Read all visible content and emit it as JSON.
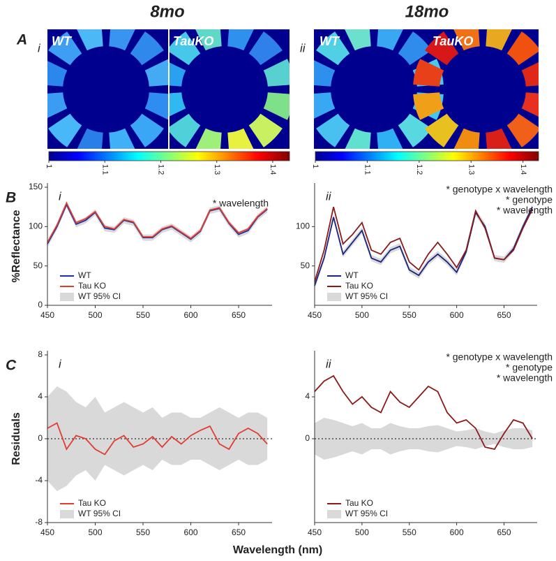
{
  "figure": {
    "columns": [
      "8mo",
      "18mo"
    ],
    "panel_A": {
      "letter": "A",
      "subpanels": [
        "i",
        "ii"
      ],
      "image_labels": [
        [
          "WT",
          "TauKO"
        ],
        [
          "WT",
          "TauKO"
        ]
      ]
    },
    "xlabel": "Wavelength (nm)",
    "colorbars": [
      {
        "clim": [
          1,
          1.43
        ],
        "ticks": [
          1,
          1.1,
          1.2,
          1.3,
          1.4
        ]
      },
      {
        "clim": [
          1,
          1.43
        ],
        "ticks": [
          1,
          1.1,
          1.2,
          1.3,
          1.4
        ]
      }
    ]
  },
  "chart_data": [
    {
      "type": "line",
      "panel": "B",
      "subpanel": "i",
      "ylabel": "%Reflectance",
      "annotations": [
        "* wavelength"
      ],
      "legend": "lower left",
      "x": [
        450,
        460,
        470,
        480,
        490,
        500,
        510,
        520,
        530,
        540,
        550,
        560,
        570,
        580,
        590,
        600,
        610,
        620,
        630,
        640,
        650,
        660,
        670,
        680
      ],
      "xlim": [
        450,
        685
      ],
      "xticks": [
        450,
        500,
        550,
        600,
        650
      ],
      "ylim": [
        0,
        150
      ],
      "yticks": [
        0,
        50,
        100,
        150
      ],
      "series": [
        {
          "name": "WT",
          "color": "#1f2f9e",
          "values": [
            78,
            100,
            128,
            103,
            108,
            118,
            98,
            96,
            108,
            105,
            86,
            86,
            96,
            100,
            92,
            84,
            94,
            120,
            123,
            104,
            90,
            95,
            112,
            122
          ]
        },
        {
          "name": "Tau KO",
          "color": "#e03c31",
          "values": [
            80,
            102,
            130,
            105,
            110,
            119,
            100,
            97,
            109,
            106,
            87,
            87,
            97,
            101,
            93,
            85,
            95,
            121,
            124,
            105,
            92,
            97,
            113,
            123
          ]
        },
        {
          "name": "WT 95% CI",
          "color": "#d9d9d9",
          "upper": [
            82,
            104,
            132,
            107,
            112,
            122,
            102,
            100,
            112,
            109,
            90,
            90,
            100,
            104,
            96,
            88,
            98,
            124,
            127,
            108,
            94,
            99,
            116,
            126
          ],
          "lower": [
            74,
            96,
            124,
            99,
            104,
            114,
            94,
            92,
            104,
            101,
            82,
            82,
            92,
            96,
            88,
            80,
            90,
            116,
            119,
            100,
            86,
            91,
            108,
            118
          ]
        }
      ]
    },
    {
      "type": "line",
      "subpanel": "ii",
      "annotations": [
        "* genotype x wavelength",
        "* genotype",
        "* wavelength"
      ],
      "legend": "lower left",
      "x": [
        450,
        460,
        470,
        480,
        490,
        500,
        510,
        520,
        530,
        540,
        550,
        560,
        570,
        580,
        590,
        600,
        610,
        620,
        630,
        640,
        650,
        660,
        670,
        680
      ],
      "xlim": [
        450,
        685
      ],
      "xticks": [
        450,
        500,
        550,
        600,
        650
      ],
      "ylim": [
        0,
        150
      ],
      "yticks": [
        50,
        100
      ],
      "series": [
        {
          "name": "WT",
          "color": "#1a237e",
          "values": [
            25,
            60,
            112,
            65,
            80,
            95,
            60,
            55,
            70,
            75,
            45,
            38,
            55,
            65,
            55,
            42,
            68,
            118,
            100,
            60,
            58,
            72,
            100,
            125
          ]
        },
        {
          "name": "Tau KO",
          "color": "#8b1a1a",
          "values": [
            30,
            70,
            125,
            78,
            90,
            105,
            70,
            65,
            80,
            85,
            55,
            45,
            65,
            80,
            65,
            48,
            70,
            120,
            98,
            60,
            58,
            70,
            98,
            122
          ]
        },
        {
          "name": "WT 95% CI",
          "color": "#d9d9d9",
          "upper": [
            29,
            64,
            116,
            69,
            84,
            99,
            64,
            59,
            74,
            79,
            49,
            42,
            59,
            69,
            59,
            46,
            72,
            122,
            104,
            64,
            62,
            76,
            104,
            129
          ],
          "lower": [
            21,
            56,
            108,
            61,
            76,
            91,
            56,
            51,
            66,
            71,
            41,
            34,
            51,
            61,
            51,
            38,
            64,
            114,
            96,
            56,
            54,
            68,
            96,
            121
          ]
        }
      ]
    },
    {
      "type": "line",
      "panel": "C",
      "subpanel": "i",
      "ylabel": "Residuals",
      "legend": "lower left",
      "reference_line": 0,
      "x": [
        450,
        460,
        470,
        480,
        490,
        500,
        510,
        520,
        530,
        540,
        550,
        560,
        570,
        580,
        590,
        600,
        610,
        620,
        630,
        640,
        650,
        660,
        670,
        680
      ],
      "xlim": [
        450,
        685
      ],
      "xticks": [
        450,
        500,
        550,
        600,
        650
      ],
      "ylim": [
        -8,
        8
      ],
      "yticks": [
        -8,
        -4,
        0,
        4,
        8
      ],
      "series": [
        {
          "name": "Tau KO",
          "color": "#e03c31",
          "values": [
            1,
            1.5,
            -1,
            0.3,
            0,
            -1,
            -1.5,
            -0.2,
            0.3,
            -0.8,
            -0.5,
            0.2,
            -0.8,
            0.2,
            -0.5,
            0.3,
            0.8,
            1.2,
            -0.5,
            -1,
            0.5,
            1,
            0.5,
            -0.5
          ]
        },
        {
          "name": "WT 95% CI",
          "color": "#d9d9d9",
          "upper": [
            4,
            5,
            4.5,
            3.5,
            3,
            4,
            2.5,
            3,
            3.5,
            3,
            2.5,
            3,
            2,
            2.5,
            2.5,
            2,
            2,
            2.5,
            3,
            2.5,
            2,
            2.5,
            2.5,
            2
          ],
          "lower": [
            -4,
            -5,
            -4.5,
            -3.5,
            -3,
            -4,
            -2.5,
            -3,
            -3.5,
            -3,
            -2.5,
            -3,
            -2,
            -2.5,
            -2.5,
            -2,
            -2,
            -2.5,
            -3,
            -2.5,
            -2,
            -2.5,
            -2.5,
            -2
          ]
        }
      ]
    },
    {
      "type": "line",
      "subpanel": "ii",
      "annotations": [
        "* genotype x wavelength",
        "* genotype",
        "* wavelength"
      ],
      "legend": "lower left",
      "reference_line": 0,
      "x": [
        450,
        460,
        470,
        480,
        490,
        500,
        510,
        520,
        530,
        540,
        550,
        560,
        570,
        580,
        590,
        600,
        610,
        620,
        630,
        640,
        650,
        660,
        670,
        680
      ],
      "xlim": [
        450,
        685
      ],
      "xticks": [
        450,
        500,
        550,
        600,
        650
      ],
      "ylim": [
        -8,
        8
      ],
      "yticks": [
        0,
        4
      ],
      "series": [
        {
          "name": "Tau KO",
          "color": "#8b1a1a",
          "values": [
            4.5,
            5.5,
            6,
            4.5,
            3.3,
            4,
            3,
            2.5,
            4.5,
            3.5,
            3,
            4,
            5,
            4.5,
            2.5,
            1.5,
            1.8,
            1,
            -0.8,
            -1,
            0.5,
            1.8,
            1.5,
            0
          ]
        },
        {
          "name": "WT 95% CI",
          "color": "#d9d9d9",
          "upper": [
            1.5,
            2,
            1.8,
            1.5,
            1.2,
            1.5,
            1,
            1,
            1.5,
            1.2,
            1,
            1,
            1.2,
            1.3,
            1,
            0.7,
            0.8,
            1,
            0.7,
            0.5,
            0.8,
            1,
            1,
            0.8
          ],
          "lower": [
            -1.5,
            -2,
            -1.8,
            -1.5,
            -1.2,
            -1.5,
            -1,
            -1,
            -1.5,
            -1.2,
            -1,
            -1,
            -1.2,
            -1.3,
            -1,
            -0.7,
            -0.8,
            -1,
            -0.7,
            -0.5,
            -0.8,
            -1,
            -1,
            -0.8
          ]
        }
      ]
    }
  ]
}
